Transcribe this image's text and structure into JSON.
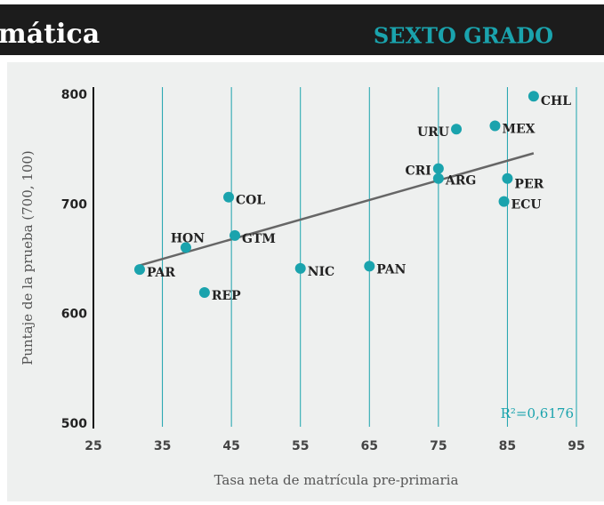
{
  "header": {
    "title": "mática",
    "grade": "SEXTO GRADO"
  },
  "chart_data": {
    "type": "scatter",
    "xlabel": "Tasa neta de matrícula pre-primaria",
    "ylabel": "Puntaje de la prueba (700, 100)",
    "annotation": "R²=0,6176",
    "color": "#1aa3ad",
    "xlim": [
      25,
      95
    ],
    "xticks": [
      25,
      35,
      45,
      55,
      65,
      75,
      85,
      95
    ],
    "ylim": [
      500,
      800
    ],
    "yticks": [
      500,
      600,
      700,
      800
    ],
    "grid": true,
    "labels": [
      "CHL",
      "MEX",
      "URU",
      "CRI",
      "ARG",
      "PER",
      "ECU",
      "COL",
      "HON",
      "GTM",
      "PAR",
      "REP",
      "NIC",
      "PAN"
    ],
    "x": [
      88.8,
      83.2,
      77.6,
      75,
      75,
      85,
      84.5,
      44.6,
      38.4,
      45.5,
      31.7,
      41.1,
      55,
      65
    ],
    "values": [
      799,
      772,
      769,
      733,
      724,
      724,
      703,
      707,
      661,
      672,
      641,
      620,
      642,
      644
    ],
    "trendline": {
      "color": "#666666",
      "x": [
        31.7,
        88.8
      ],
      "values": [
        644.7,
        747
      ]
    }
  }
}
